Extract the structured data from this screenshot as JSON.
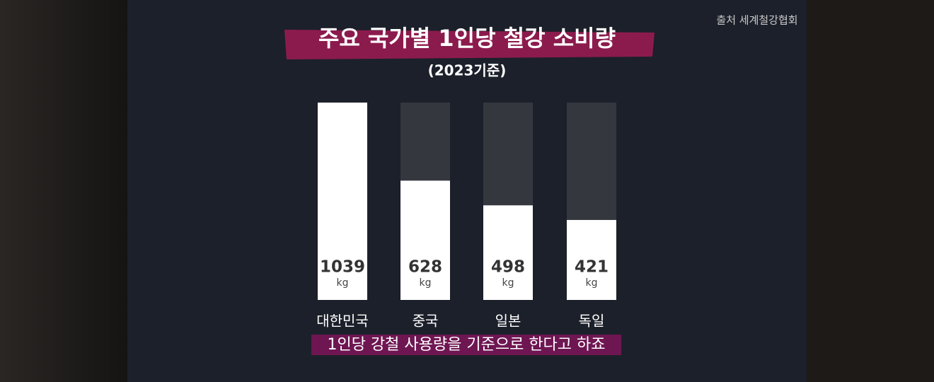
{
  "chart_data": {
    "type": "bar",
    "title": "주요 국가별 1인당 철강 소비량",
    "subtitle": "(2023기준)",
    "source": "출처 세계철강협회",
    "caption": "1인당 강철 사용량을 기준으로 한다고 하죠",
    "unit": "kg",
    "categories": [
      "대한민국",
      "중국",
      "일본",
      "독일"
    ],
    "values": [
      1039,
      628,
      498,
      421
    ],
    "color": "#ffffff",
    "track_color": "#35373f",
    "ylim": [
      0,
      1039
    ]
  }
}
